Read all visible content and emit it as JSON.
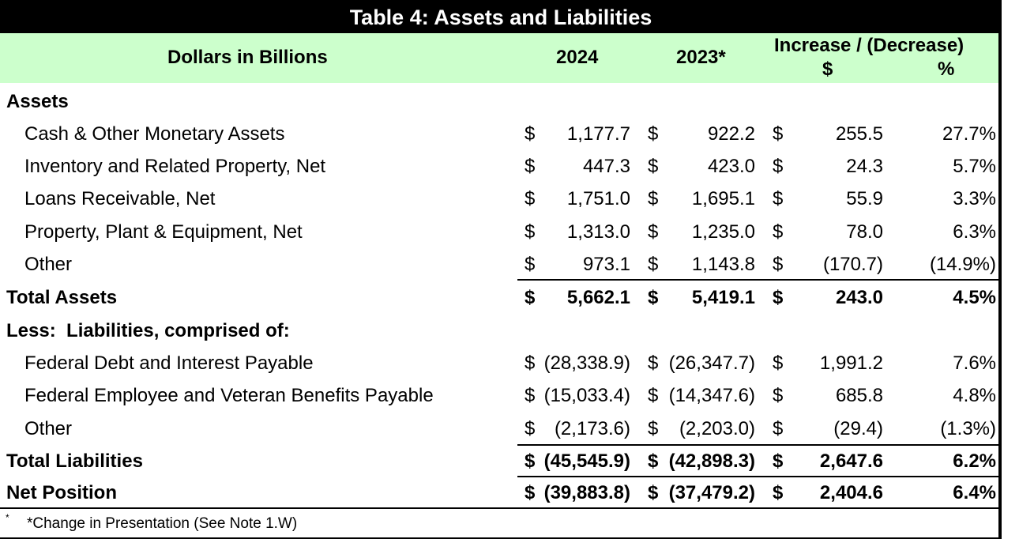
{
  "title": "Table 4:  Assets and Liabilities",
  "header": {
    "label": "Dollars in Billions",
    "col_2024": "2024",
    "col_2023": "2023*",
    "change_title": "Increase / (Decrease)",
    "change_dollar": "$",
    "change_pct": "%"
  },
  "rows": [
    {
      "label": "Assets",
      "bold": true,
      "indent": false,
      "d1": "",
      "v1": "",
      "d2": "",
      "v2": "",
      "d3": "",
      "v3": "",
      "v4": ""
    },
    {
      "label": "Cash & Other Monetary Assets",
      "bold": false,
      "indent": true,
      "d1": "$",
      "v1": "1,177.7",
      "d2": "$",
      "v2": "922.2",
      "d3": "$",
      "v3": "255.5",
      "v4": "27.7%"
    },
    {
      "label": "Inventory and Related Property, Net",
      "bold": false,
      "indent": true,
      "d1": "$",
      "v1": "447.3",
      "d2": "$",
      "v2": "423.0",
      "d3": "$",
      "v3": "24.3",
      "v4": "5.7%"
    },
    {
      "label": "Loans Receivable, Net",
      "bold": false,
      "indent": true,
      "d1": "$",
      "v1": "1,751.0",
      "d2": "$",
      "v2": "1,695.1",
      "d3": "$",
      "v3": "55.9",
      "v4": "3.3%"
    },
    {
      "label": "Property, Plant & Equipment, Net",
      "bold": false,
      "indent": true,
      "d1": "$",
      "v1": "1,313.0",
      "d2": "$",
      "v2": "1,235.0",
      "d3": "$",
      "v3": "78.0",
      "v4": "6.3%"
    },
    {
      "label": "Other",
      "bold": false,
      "indent": true,
      "d1": "$",
      "v1": "973.1",
      "d2": "$",
      "v2": "1,143.8",
      "d3": "$",
      "v3": "(170.7)",
      "v4": "(14.9%)"
    },
    {
      "label": "Total Assets",
      "bold": true,
      "indent": false,
      "d1": "$",
      "v1": "5,662.1",
      "d2": "$",
      "v2": "5,419.1",
      "d3": "$",
      "v3": "243.0",
      "v4": "4.5%"
    },
    {
      "label": "Less:  Liabilities, comprised of:",
      "bold": true,
      "indent": false,
      "d1": "",
      "v1": "",
      "d2": "",
      "v2": "",
      "d3": "",
      "v3": "",
      "v4": ""
    },
    {
      "label": "Federal Debt and Interest Payable",
      "bold": false,
      "indent": true,
      "d1": "$",
      "v1": "(28,338.9)",
      "d2": "$",
      "v2": "(26,347.7)",
      "d3": "$",
      "v3": "1,991.2",
      "v4": "7.6%"
    },
    {
      "label": "Federal Employee and Veteran Benefits Payable",
      "bold": false,
      "indent": true,
      "d1": "$",
      "v1": "(15,033.4)",
      "d2": "$",
      "v2": "(14,347.6)",
      "d3": "$",
      "v3": "685.8",
      "v4": "4.8%"
    },
    {
      "label": "Other",
      "bold": false,
      "indent": true,
      "d1": "$",
      "v1": "(2,173.6)",
      "d2": "$",
      "v2": "(2,203.0)",
      "d3": "$",
      "v3": "(29.4)",
      "v4": "(1.3%)"
    },
    {
      "label": "Total Liabilities",
      "bold": true,
      "indent": false,
      "d1": "$",
      "v1": "(45,545.9)",
      "d2": "$",
      "v2": "(42,898.3)",
      "d3": "$",
      "v3": "2,647.6",
      "v4": "6.2%"
    },
    {
      "label": "Net Position",
      "bold": true,
      "indent": false,
      "d1": "$",
      "v1": "(39,883.8)",
      "d2": "$",
      "v2": "(37,479.2)",
      "d3": "$",
      "v3": "2,404.6",
      "v4": "6.4%"
    }
  ],
  "footnote": {
    "mark": "*",
    "text": "*Change in Presentation (See Note 1.W)"
  }
}
